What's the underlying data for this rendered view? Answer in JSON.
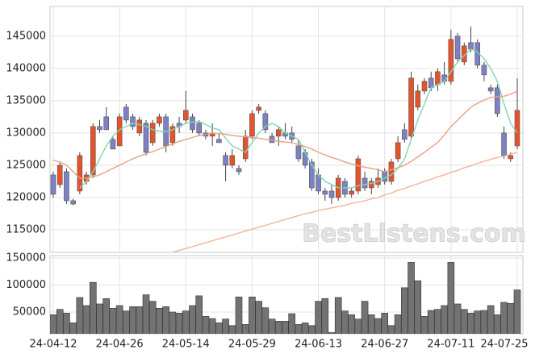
{
  "chart_data": [
    {
      "type": "candlestick",
      "watermark": "BestListens.com",
      "categories": [
        "24-04-12",
        null,
        null,
        null,
        null,
        null,
        null,
        null,
        null,
        null,
        "24-04-26",
        null,
        null,
        null,
        null,
        null,
        null,
        null,
        null,
        null,
        "24-05-14",
        null,
        null,
        null,
        null,
        null,
        null,
        null,
        null,
        null,
        "24-05-29",
        null,
        null,
        null,
        null,
        null,
        null,
        null,
        null,
        null,
        "24-06-13",
        null,
        null,
        null,
        null,
        null,
        null,
        null,
        null,
        null,
        "24-06-27",
        null,
        null,
        null,
        null,
        null,
        null,
        null,
        null,
        null,
        "24-07-11",
        null,
        null,
        null,
        null,
        null,
        null,
        null,
        null,
        null,
        "24-07-25"
      ],
      "open": [
        123500,
        122000,
        124000,
        119500,
        121000,
        122500,
        123500,
        131000,
        132500,
        129000,
        128000,
        134000,
        132500,
        130000,
        131500,
        128500,
        131500,
        132500,
        128500,
        131500,
        132000,
        132500,
        131500,
        130000,
        129500,
        129000,
        126500,
        125000,
        124500,
        126000,
        129500,
        133500,
        133000,
        129500,
        129500,
        130000,
        130000,
        128000,
        127000,
        125500,
        123500,
        121000,
        121000,
        120000,
        122500,
        120500,
        121000,
        123000,
        121500,
        122000,
        124000,
        122500,
        126000,
        130500,
        129500,
        134000,
        136500,
        138500,
        137500,
        139000,
        138000,
        145000,
        141000,
        144000,
        144000,
        140500,
        137000,
        137000,
        130000,
        126000,
        128000
      ],
      "high": [
        124000,
        125500,
        124500,
        119800,
        127000,
        124000,
        131500,
        132000,
        134000,
        129500,
        133000,
        134500,
        133000,
        132500,
        132000,
        132000,
        133000,
        133000,
        131500,
        132500,
        136500,
        133000,
        132000,
        130500,
        131500,
        130000,
        127000,
        127500,
        125000,
        130500,
        133500,
        134500,
        133500,
        130000,
        131000,
        131500,
        131000,
        129000,
        127500,
        126000,
        124500,
        121500,
        122000,
        123500,
        123000,
        121500,
        126500,
        124000,
        123000,
        124500,
        124500,
        126000,
        129500,
        131500,
        139500,
        137500,
        138500,
        139500,
        140000,
        141000,
        146000,
        145500,
        144000,
        146500,
        144500,
        141000,
        137500,
        137500,
        131000,
        127000,
        138500
      ],
      "low": [
        120000,
        121500,
        119000,
        118800,
        120500,
        122000,
        123000,
        130000,
        130500,
        127500,
        128000,
        131500,
        130500,
        129500,
        126500,
        128000,
        131000,
        127000,
        128000,
        130000,
        131500,
        130000,
        129500,
        129000,
        128000,
        128500,
        122500,
        124500,
        123500,
        125500,
        129000,
        133000,
        130000,
        128500,
        128000,
        129000,
        128500,
        125500,
        124500,
        121000,
        120500,
        119500,
        119000,
        119500,
        120000,
        120000,
        120500,
        121000,
        120500,
        121500,
        122000,
        122000,
        125500,
        128500,
        129000,
        133500,
        136000,
        136500,
        136500,
        137500,
        137500,
        141000,
        140500,
        142500,
        140000,
        138000,
        136000,
        132500,
        126000,
        125500,
        127500
      ],
      "close": [
        120500,
        125000,
        119500,
        119000,
        126500,
        123500,
        131000,
        130500,
        130500,
        127500,
        132500,
        132000,
        131000,
        132000,
        127000,
        131500,
        132500,
        128000,
        131000,
        131000,
        133500,
        130500,
        130000,
        129500,
        130000,
        128500,
        125000,
        126500,
        124000,
        129500,
        133000,
        134000,
        130500,
        128500,
        130500,
        129500,
        129000,
        126000,
        125000,
        121500,
        121000,
        120500,
        120000,
        123000,
        120500,
        121000,
        126000,
        121500,
        122500,
        123000,
        122500,
        125500,
        128500,
        129000,
        138500,
        136500,
        138000,
        137000,
        139500,
        138000,
        144500,
        141500,
        143500,
        143000,
        140500,
        139000,
        136500,
        133000,
        126500,
        126500,
        133500
      ],
      "up_color": "#e4532b",
      "down_color": "#7d80c3",
      "series": [
        {
          "color": "#7fd6b0",
          "values": [
            null,
            null,
            null,
            null,
            121500,
            122500,
            124000,
            126000,
            128000,
            129500,
            130500,
            131000,
            131500,
            131300,
            131000,
            130500,
            130300,
            130200,
            130500,
            131000,
            131500,
            131700,
            131800,
            131300,
            130800,
            130500,
            129200,
            128000,
            127500,
            127000,
            128500,
            130000,
            131000,
            131500,
            131000,
            130000,
            129500,
            129000,
            127000,
            125000,
            123500,
            122500,
            122000,
            121500,
            121500,
            121500,
            121800,
            122000,
            122200,
            122500,
            123000,
            123500,
            124500,
            126000,
            129000,
            132000,
            134500,
            137000,
            137500,
            138000,
            139500,
            141000,
            142000,
            143000,
            142500,
            141500,
            140000,
            138000,
            134500,
            131500,
            130000
          ]
        },
        {
          "color": "#eba07f",
          "values": [
            125800,
            125500,
            125000,
            124000,
            123000,
            123000,
            123200,
            123500,
            124000,
            124500,
            125000,
            125500,
            126000,
            126400,
            126800,
            127100,
            127500,
            127900,
            128300,
            128700,
            129000,
            129300,
            129600,
            129800,
            130000,
            129900,
            129800,
            129600,
            129500,
            129400,
            129300,
            129200,
            129000,
            128900,
            128700,
            128600,
            128500,
            128200,
            127900,
            127500,
            127000,
            126600,
            126200,
            125900,
            125500,
            125200,
            124900,
            124700,
            124500,
            124300,
            124000,
            124300,
            124600,
            125000,
            125600,
            126300,
            127000,
            127800,
            128500,
            129700,
            131000,
            132000,
            133000,
            134000,
            134600,
            135100,
            135500,
            135600,
            135700,
            136000,
            136500
          ]
        },
        {
          "color": "#f0b596",
          "values": [
            null,
            null,
            null,
            null,
            null,
            null,
            null,
            null,
            null,
            null,
            null,
            null,
            null,
            null,
            null,
            null,
            null,
            null,
            111500,
            111800,
            112100,
            112400,
            112700,
            113000,
            113300,
            113600,
            113900,
            114200,
            114500,
            114800,
            115100,
            115400,
            115700,
            116000,
            116300,
            116600,
            116900,
            117200,
            117500,
            117700,
            118000,
            118200,
            118400,
            118600,
            118800,
            119100,
            119300,
            119500,
            119800,
            120000,
            120400,
            120700,
            121100,
            121400,
            121800,
            122100,
            122500,
            122800,
            123200,
            123500,
            123900,
            124200,
            124600,
            124900,
            125300,
            125600,
            125900,
            126200,
            126400,
            126700,
            127000
          ]
        }
      ],
      "ylim": [
        111500,
        149600
      ],
      "yticks": [
        115000,
        120000,
        125000,
        130000,
        135000,
        140000,
        145000
      ],
      "grid": true
    },
    {
      "type": "bar",
      "values": [
        45000,
        55000,
        48000,
        30000,
        77000,
        62000,
        105000,
        65000,
        75000,
        57000,
        62000,
        52000,
        60000,
        60000,
        82000,
        70000,
        57000,
        60000,
        50000,
        48000,
        52000,
        62000,
        80000,
        42000,
        38000,
        30000,
        37000,
        25000,
        78000,
        27000,
        78000,
        70000,
        58000,
        37000,
        33000,
        33000,
        47000,
        27000,
        30000,
        25000,
        70000,
        75000,
        12000,
        77000,
        52000,
        45000,
        37000,
        70000,
        45000,
        38000,
        48000,
        25000,
        45000,
        95000,
        142000,
        108000,
        42000,
        53000,
        55000,
        62000,
        142000,
        65000,
        55000,
        48000,
        52000,
        53000,
        62000,
        45000,
        68000,
        66000,
        91000
      ],
      "color": "#737373",
      "ylim": [
        9700,
        154500
      ],
      "yticks": [
        50000,
        100000,
        150000
      ],
      "grid": true
    }
  ]
}
